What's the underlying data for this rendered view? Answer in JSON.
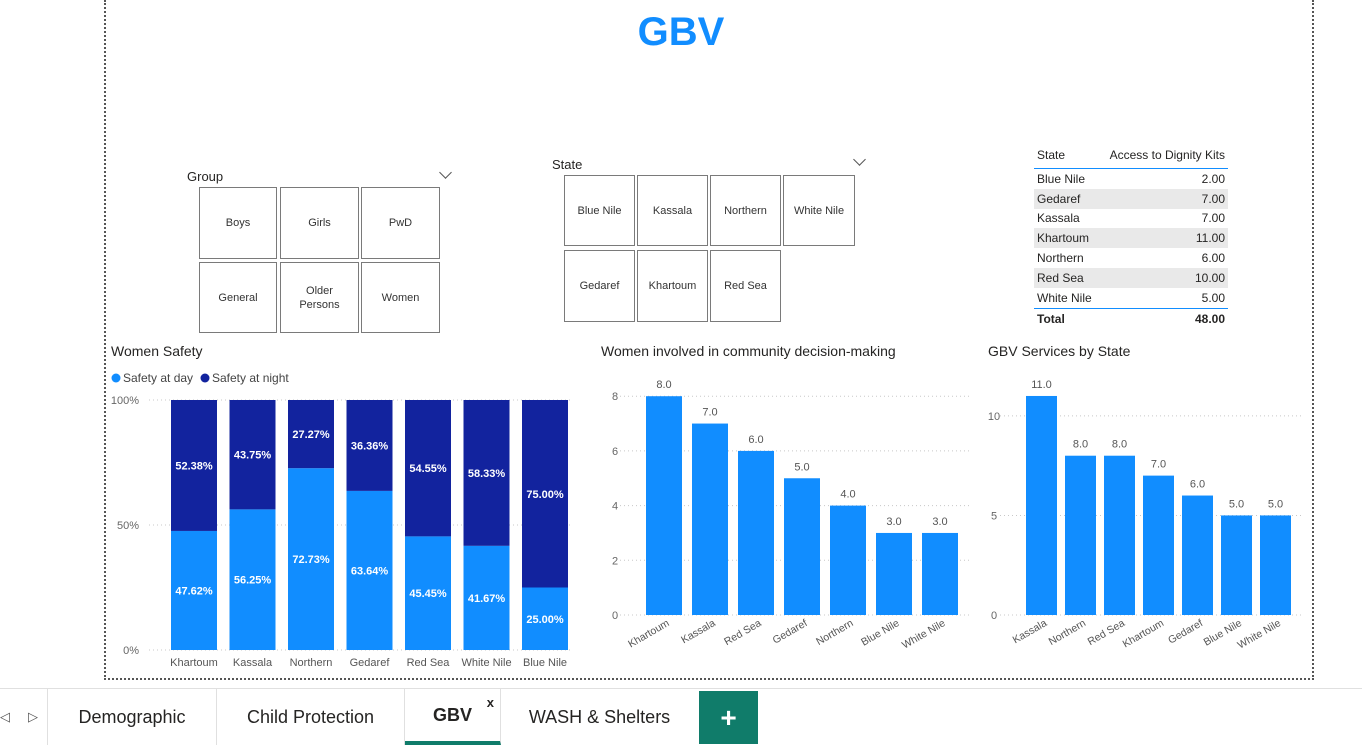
{
  "page": {
    "title": "GBV"
  },
  "slicers": {
    "group": {
      "label": "Group",
      "options": [
        "Boys",
        "Girls",
        "PwD",
        "General",
        "Older Persons",
        "Women"
      ]
    },
    "state": {
      "label": "State",
      "options": [
        "Blue Nile",
        "Kassala",
        "Northern",
        "White Nile",
        "Gedaref",
        "Khartoum",
        "Red Sea"
      ]
    }
  },
  "dignity_table": {
    "col_state": "State",
    "col_value": "Access to Dignity Kits",
    "rows": [
      {
        "state": "Blue Nile",
        "value": "2.00"
      },
      {
        "state": "Gedaref",
        "value": "7.00"
      },
      {
        "state": "Kassala",
        "value": "7.00"
      },
      {
        "state": "Khartoum",
        "value": "11.00"
      },
      {
        "state": "Northern",
        "value": "6.00"
      },
      {
        "state": "Red Sea",
        "value": "10.00"
      },
      {
        "state": "White Nile",
        "value": "5.00"
      }
    ],
    "total_label": "Total",
    "total_value": "48.00"
  },
  "colors": {
    "accent": "#118dff",
    "dark": "#12239e",
    "tab_green": "#107c6a"
  },
  "chart_data": [
    {
      "type": "bar",
      "stacked": "100%",
      "title": "Women Safety",
      "legend_position": "top-left",
      "categories": [
        "Khartoum",
        "Kassala",
        "Northern",
        "Gedaref",
        "Red Sea",
        "White Nile",
        "Blue Nile"
      ],
      "series": [
        {
          "name": "Safety at day",
          "values": [
            47.62,
            56.25,
            72.73,
            63.64,
            45.45,
            41.67,
            25.0
          ],
          "labels": [
            "47.62%",
            "56.25%",
            "72.73%",
            "63.64%",
            "45.45%",
            "41.67%",
            "25.00%"
          ],
          "color": "#118dff"
        },
        {
          "name": "Safety at night",
          "values": [
            52.38,
            43.75,
            27.27,
            36.36,
            54.55,
            58.33,
            75.0
          ],
          "labels": [
            "52.38%",
            "43.75%",
            "27.27%",
            "36.36%",
            "54.55%",
            "58.33%",
            "75.00%"
          ],
          "color": "#12239e"
        }
      ],
      "yticks": [
        "0%",
        "50%",
        "100%"
      ],
      "ylim": [
        0,
        100
      ],
      "grid": true
    },
    {
      "type": "bar",
      "title": "Women involved in community decision-making",
      "categories": [
        "Khartoum",
        "Kassala",
        "Red Sea",
        "Gedaref",
        "Northern",
        "Blue Nile",
        "White Nile"
      ],
      "values": [
        8,
        7,
        6,
        5,
        4,
        3,
        3
      ],
      "labels": [
        "8.0",
        "7.0",
        "6.0",
        "5.0",
        "4.0",
        "3.0",
        "3.0"
      ],
      "yticks": [
        "0",
        "2",
        "4",
        "6",
        "8"
      ],
      "ytick_values": [
        0,
        2,
        4,
        6,
        8
      ],
      "ylim": [
        0,
        8.3
      ],
      "color": "#118dff",
      "grid": true
    },
    {
      "type": "bar",
      "title": "GBV Services by State",
      "categories": [
        "Kassala",
        "Northern",
        "Red Sea",
        "Khartoum",
        "Gedaref",
        "Blue Nile",
        "White Nile"
      ],
      "values": [
        11,
        8,
        8,
        7,
        6,
        5,
        5
      ],
      "labels": [
        "11.0",
        "8.0",
        "8.0",
        "7.0",
        "6.0",
        "5.0",
        "5.0"
      ],
      "yticks": [
        "0",
        "5",
        "10"
      ],
      "ytick_values": [
        0,
        5,
        10
      ],
      "ylim": [
        0,
        11.3
      ],
      "color": "#118dff",
      "grid": true
    }
  ],
  "tabs": {
    "items": [
      {
        "label": "Demographic"
      },
      {
        "label": "Child Protection"
      },
      {
        "label": "GBV",
        "close": "x"
      },
      {
        "label": "WASH & Shelters"
      }
    ],
    "add_label": "+",
    "prev_icon": "◁",
    "next_icon": "▷"
  }
}
